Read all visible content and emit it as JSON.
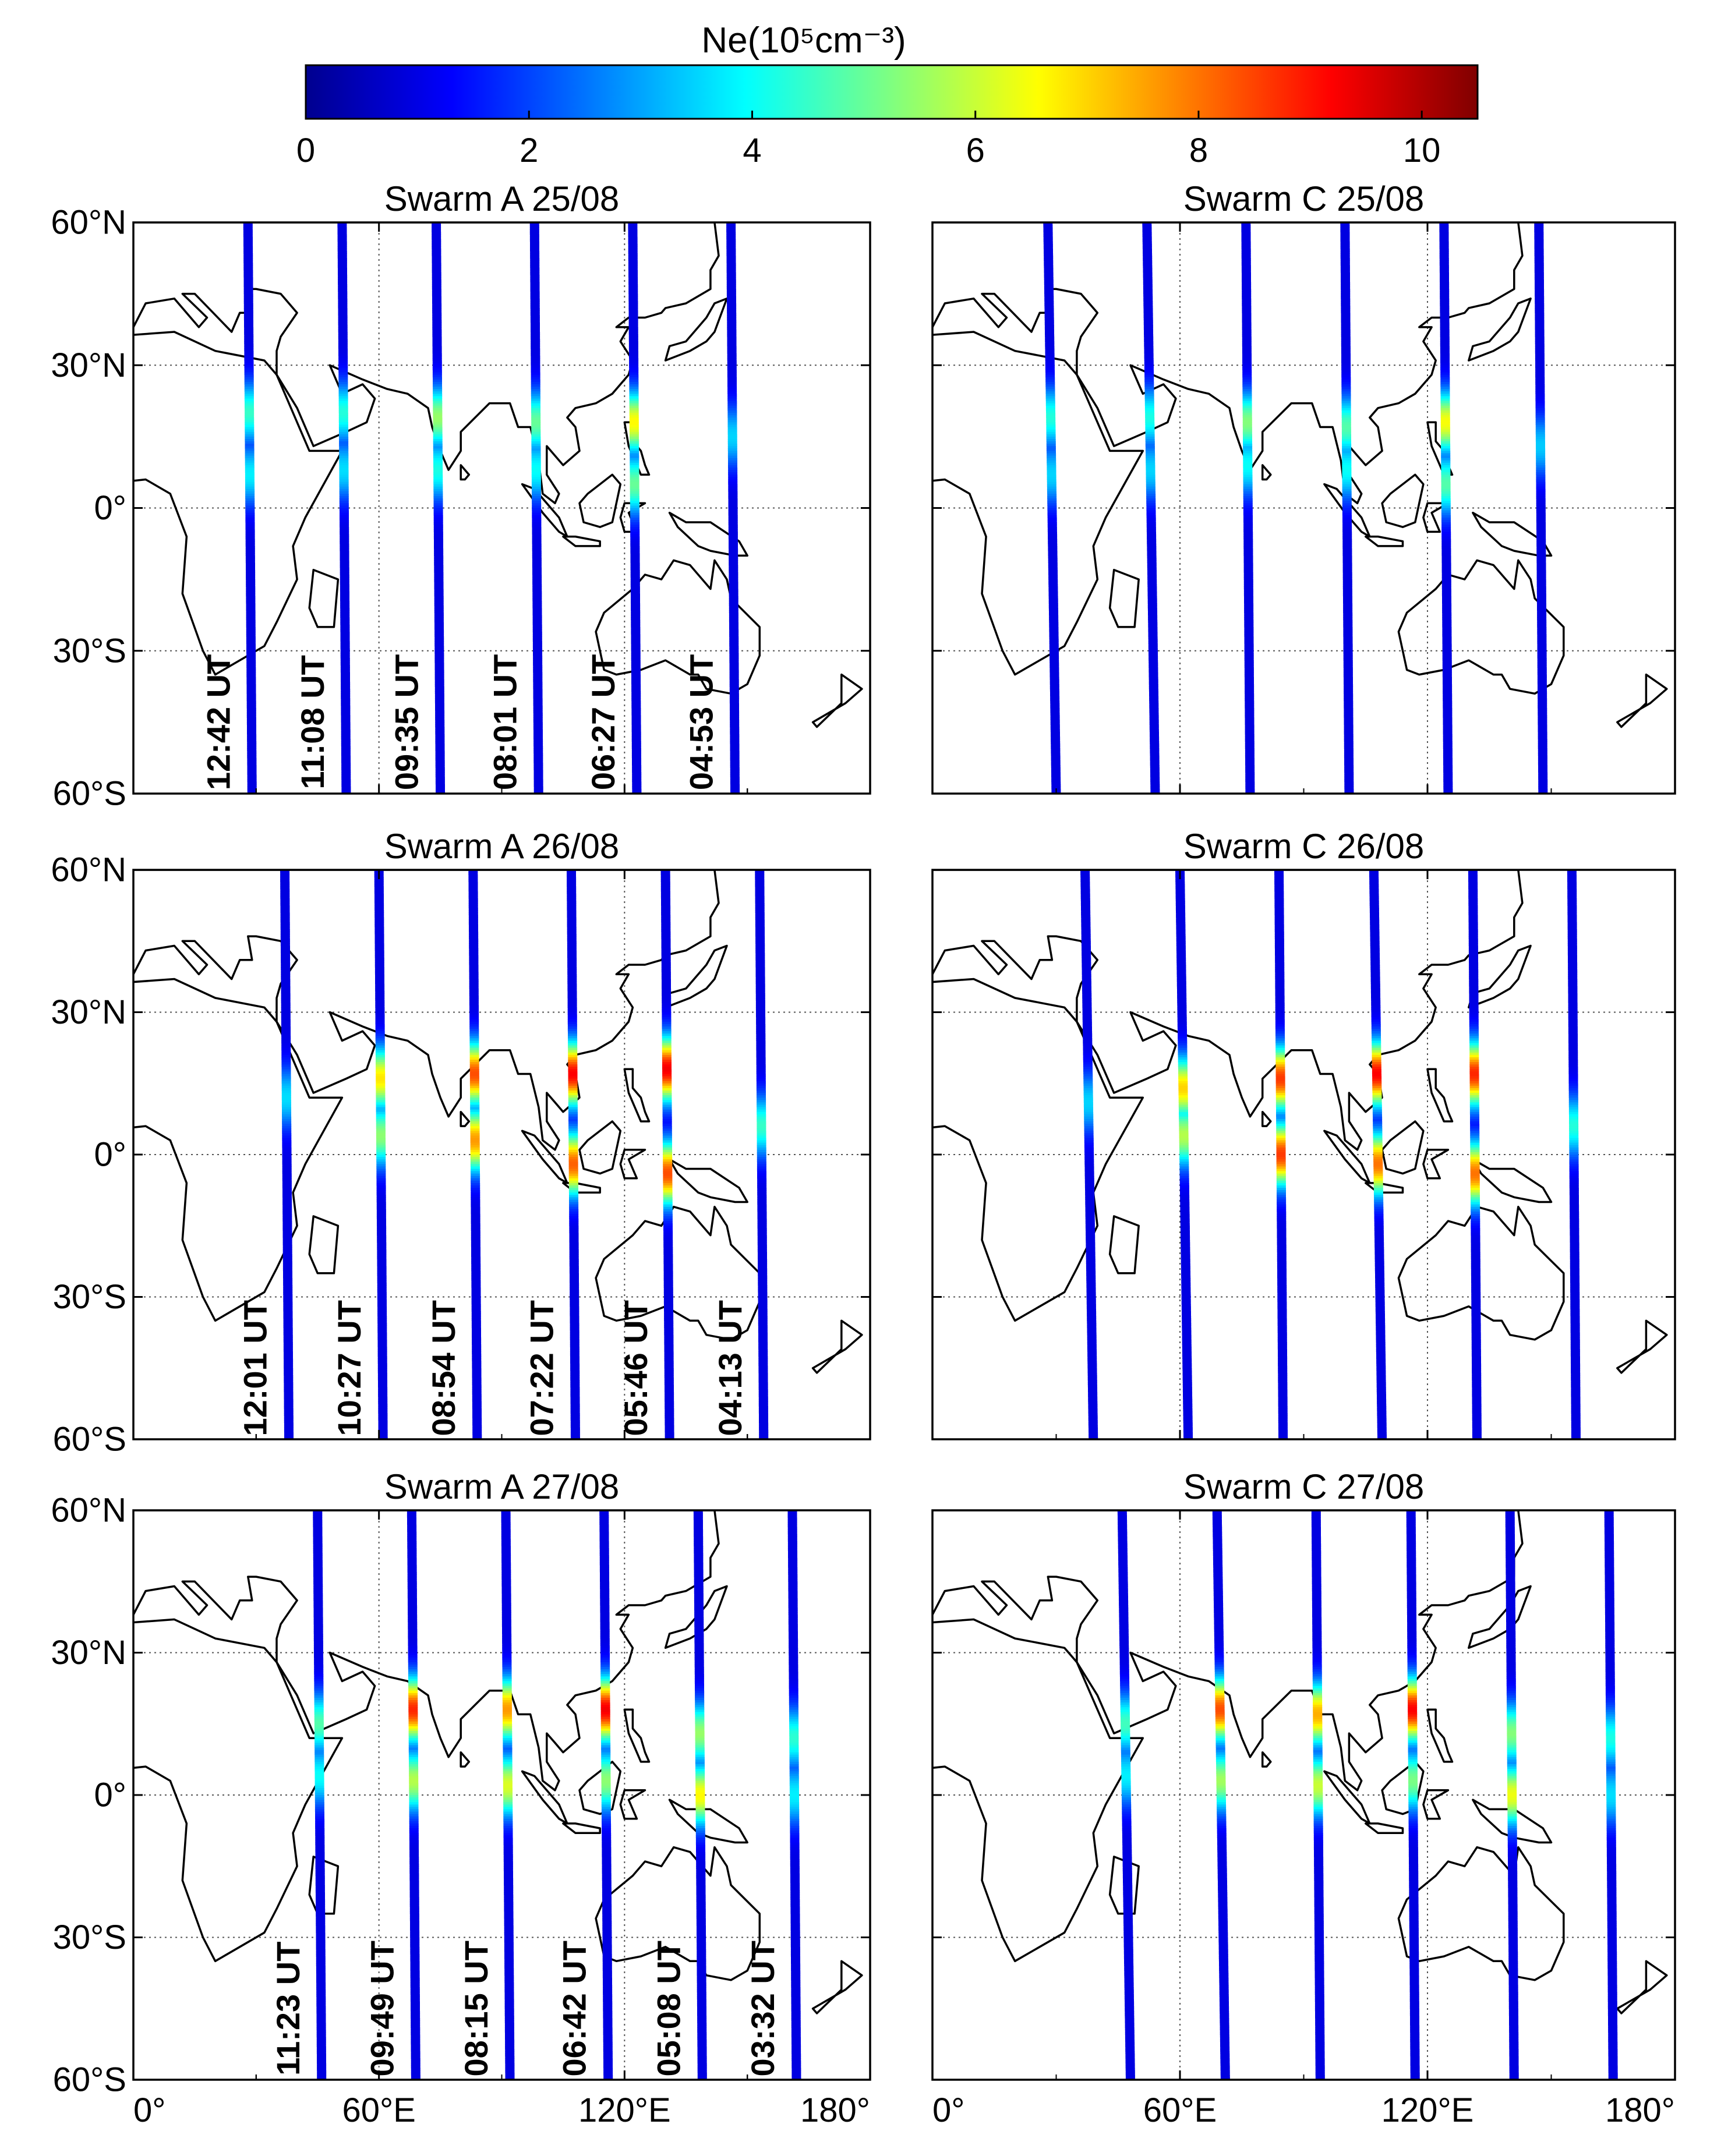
{
  "colorbar": {
    "label": "Ne(10⁵cm⁻³)",
    "min": 0,
    "max": 10.5,
    "ticks": [
      0,
      2,
      4,
      6,
      8,
      10
    ],
    "tick_labels": [
      "0",
      "2",
      "4",
      "6",
      "8",
      "10"
    ]
  },
  "axes": {
    "x_ticks": [
      0,
      60,
      120,
      180
    ],
    "x_tick_labels": [
      "0°",
      "60°E",
      "120°E",
      "180°"
    ],
    "y_ticks": [
      60,
      30,
      0,
      -30,
      -60
    ],
    "y_tick_labels": [
      "60°N",
      "30°N",
      "0°",
      "30°S",
      "60°S"
    ],
    "xlim": [
      0,
      180
    ],
    "ylim": [
      -60,
      60
    ]
  },
  "chart_data": [
    {
      "type": "map-track",
      "title": "Swarm A 25/08",
      "xlim": [
        0,
        180
      ],
      "ylim": [
        -60,
        60
      ],
      "tracks": [
        {
          "time": "12:42 UT",
          "lon_north": 28,
          "lon_south": 29,
          "peaks": [
            {
              "lat": 20,
              "ne": 4.5
            },
            {
              "lat": 7,
              "ne": 3.8
            }
          ]
        },
        {
          "time": "11:08 UT",
          "lon_north": 51,
          "lon_south": 52,
          "peaks": [
            {
              "lat": 20,
              "ne": 4.3
            },
            {
              "lat": 8,
              "ne": 3.6
            }
          ]
        },
        {
          "time": "09:35 UT",
          "lon_north": 74,
          "lon_south": 75,
          "peaks": [
            {
              "lat": 19,
              "ne": 5.5
            },
            {
              "lat": 8,
              "ne": 4.2
            }
          ]
        },
        {
          "time": "08:01 UT",
          "lon_north": 98,
          "lon_south": 99,
          "peaks": [
            {
              "lat": 18,
              "ne": 5.0
            },
            {
              "lat": 8,
              "ne": 4.0
            }
          ]
        },
        {
          "time": "06:27 UT",
          "lon_north": 122,
          "lon_south": 123,
          "peaks": [
            {
              "lat": 18,
              "ne": 6.6
            },
            {
              "lat": 5,
              "ne": 5.0
            }
          ]
        },
        {
          "time": "04:53 UT",
          "lon_north": 146,
          "lon_south": 147,
          "peaks": [
            {
              "lat": 15,
              "ne": 3.5
            }
          ]
        }
      ]
    },
    {
      "type": "map-track",
      "title": "Swarm C 25/08",
      "xlim": [
        0,
        180
      ],
      "ylim": [
        -60,
        60
      ],
      "tracks": [
        {
          "time": "",
          "lon_north": 28,
          "lon_south": 30,
          "peaks": [
            {
              "lat": 19,
              "ne": 4.3
            },
            {
              "lat": 7,
              "ne": 3.5
            }
          ]
        },
        {
          "time": "",
          "lon_north": 52,
          "lon_south": 54,
          "peaks": [
            {
              "lat": 19,
              "ne": 4.2
            },
            {
              "lat": 8,
              "ne": 3.5
            }
          ]
        },
        {
          "time": "",
          "lon_north": 76,
          "lon_south": 77,
          "peaks": [
            {
              "lat": 18,
              "ne": 5.3
            },
            {
              "lat": 9,
              "ne": 4.0
            }
          ]
        },
        {
          "time": "",
          "lon_north": 100,
          "lon_south": 101,
          "peaks": [
            {
              "lat": 17,
              "ne": 4.8
            },
            {
              "lat": 8,
              "ne": 4.0
            }
          ]
        },
        {
          "time": "",
          "lon_north": 124,
          "lon_south": 125,
          "peaks": [
            {
              "lat": 18,
              "ne": 6.5
            },
            {
              "lat": 5,
              "ne": 4.8
            }
          ]
        },
        {
          "time": "",
          "lon_north": 147,
          "lon_south": 148,
          "peaks": [
            {
              "lat": 13,
              "ne": 3.4
            }
          ]
        }
      ]
    },
    {
      "type": "map-track",
      "title": "Swarm A 26/08",
      "xlim": [
        0,
        180
      ],
      "ylim": [
        -60,
        60
      ],
      "tracks": [
        {
          "time": "12:01 UT",
          "lon_north": 37,
          "lon_south": 38,
          "peaks": [
            {
              "lat": 12,
              "ne": 3.6
            }
          ]
        },
        {
          "time": "10:27 UT",
          "lon_north": 60,
          "lon_south": 61,
          "peaks": [
            {
              "lat": 16,
              "ne": 6.8
            },
            {
              "lat": 4,
              "ne": 5.4
            }
          ]
        },
        {
          "time": "08:54 UT",
          "lon_north": 83,
          "lon_south": 84,
          "peaks": [
            {
              "lat": 17,
              "ne": 8.4
            },
            {
              "lat": 3,
              "ne": 7.6
            }
          ]
        },
        {
          "time": "07:22 UT",
          "lon_north": 107,
          "lon_south": 108,
          "peaks": [
            {
              "lat": 17,
              "ne": 9.2
            },
            {
              "lat": -2,
              "ne": 8.2
            }
          ]
        },
        {
          "time": "05:46 UT",
          "lon_north": 130,
          "lon_south": 131,
          "peaks": [
            {
              "lat": 18,
              "ne": 9.3
            },
            {
              "lat": -4,
              "ne": 8.4
            }
          ]
        },
        {
          "time": "04:13 UT",
          "lon_north": 153,
          "lon_south": 154,
          "peaks": [
            {
              "lat": 6,
              "ne": 4.5
            }
          ]
        }
      ]
    },
    {
      "type": "map-track",
      "title": "Swarm C 26/08",
      "xlim": [
        0,
        180
      ],
      "ylim": [
        -60,
        60
      ],
      "tracks": [
        {
          "time": "",
          "lon_north": 37,
          "lon_south": 39,
          "peaks": [
            {
              "lat": 11,
              "ne": 3.5
            }
          ]
        },
        {
          "time": "",
          "lon_north": 60,
          "lon_south": 62,
          "peaks": [
            {
              "lat": 14,
              "ne": 7.0
            },
            {
              "lat": 4,
              "ne": 5.8
            }
          ]
        },
        {
          "time": "",
          "lon_north": 84,
          "lon_south": 85,
          "peaks": [
            {
              "lat": 16,
              "ne": 8.6
            },
            {
              "lat": 0,
              "ne": 8.6
            }
          ]
        },
        {
          "time": "",
          "lon_north": 107,
          "lon_south": 109,
          "peaks": [
            {
              "lat": 17,
              "ne": 9.2
            },
            {
              "lat": -2,
              "ne": 8.0
            }
          ]
        },
        {
          "time": "",
          "lon_north": 131,
          "lon_south": 132,
          "peaks": [
            {
              "lat": 17,
              "ne": 8.8
            },
            {
              "lat": -4,
              "ne": 8.0
            }
          ]
        },
        {
          "time": "",
          "lon_north": 155,
          "lon_south": 156,
          "peaks": [
            {
              "lat": 6,
              "ne": 4.3
            }
          ]
        }
      ]
    },
    {
      "type": "map-track",
      "title": "Swarm A 27/08",
      "xlim": [
        0,
        180
      ],
      "ylim": [
        -60,
        60
      ],
      "tracks": [
        {
          "time": "11:23 UT",
          "lon_north": 45,
          "lon_south": 46,
          "peaks": [
            {
              "lat": 15,
              "ne": 4.8
            },
            {
              "lat": 4,
              "ne": 4.0
            }
          ]
        },
        {
          "time": "09:49 UT",
          "lon_north": 68,
          "lon_south": 69,
          "peaks": [
            {
              "lat": 18,
              "ne": 8.8
            },
            {
              "lat": 3,
              "ne": 5.8
            }
          ]
        },
        {
          "time": "08:15 UT",
          "lon_north": 91,
          "lon_south": 92,
          "peaks": [
            {
              "lat": 18,
              "ne": 7.6
            },
            {
              "lat": 2,
              "ne": 6.2
            }
          ]
        },
        {
          "time": "06:42 UT",
          "lon_north": 115,
          "lon_south": 116,
          "peaks": [
            {
              "lat": 18,
              "ne": 9.3
            },
            {
              "lat": 3,
              "ne": 5.4
            }
          ]
        },
        {
          "time": "05:08 UT",
          "lon_north": 138,
          "lon_south": 139,
          "peaks": [
            {
              "lat": 13,
              "ne": 5.5
            },
            {
              "lat": 0,
              "ne": 6.6
            }
          ]
        },
        {
          "time": "03:32 UT",
          "lon_north": 161,
          "lon_south": 162,
          "peaks": [
            {
              "lat": 12,
              "ne": 4.4
            },
            {
              "lat": 0,
              "ne": 3.8
            }
          ]
        }
      ]
    },
    {
      "type": "map-track",
      "title": "Swarm C 27/08",
      "xlim": [
        0,
        180
      ],
      "ylim": [
        -60,
        60
      ],
      "tracks": [
        {
          "time": "",
          "lon_north": 46,
          "lon_south": 48,
          "peaks": [
            {
              "lat": 15,
              "ne": 4.6
            },
            {
              "lat": 4,
              "ne": 3.8
            }
          ]
        },
        {
          "time": "",
          "lon_north": 69,
          "lon_south": 71,
          "peaks": [
            {
              "lat": 18,
              "ne": 8.4
            },
            {
              "lat": 3,
              "ne": 5.6
            }
          ]
        },
        {
          "time": "",
          "lon_north": 93,
          "lon_south": 94,
          "peaks": [
            {
              "lat": 17,
              "ne": 7.4
            },
            {
              "lat": 2,
              "ne": 6.0
            }
          ]
        },
        {
          "time": "",
          "lon_north": 116,
          "lon_south": 117,
          "peaks": [
            {
              "lat": 18,
              "ne": 9.2
            },
            {
              "lat": 3,
              "ne": 5.2
            }
          ]
        },
        {
          "time": "",
          "lon_north": 140,
          "lon_south": 141,
          "peaks": [
            {
              "lat": 13,
              "ne": 5.3
            },
            {
              "lat": 0,
              "ne": 6.4
            }
          ]
        },
        {
          "time": "",
          "lon_north": 164,
          "lon_south": 165,
          "peaks": [
            {
              "lat": 12,
              "ne": 4.2
            },
            {
              "lat": 0,
              "ne": 3.6
            }
          ]
        }
      ]
    }
  ]
}
